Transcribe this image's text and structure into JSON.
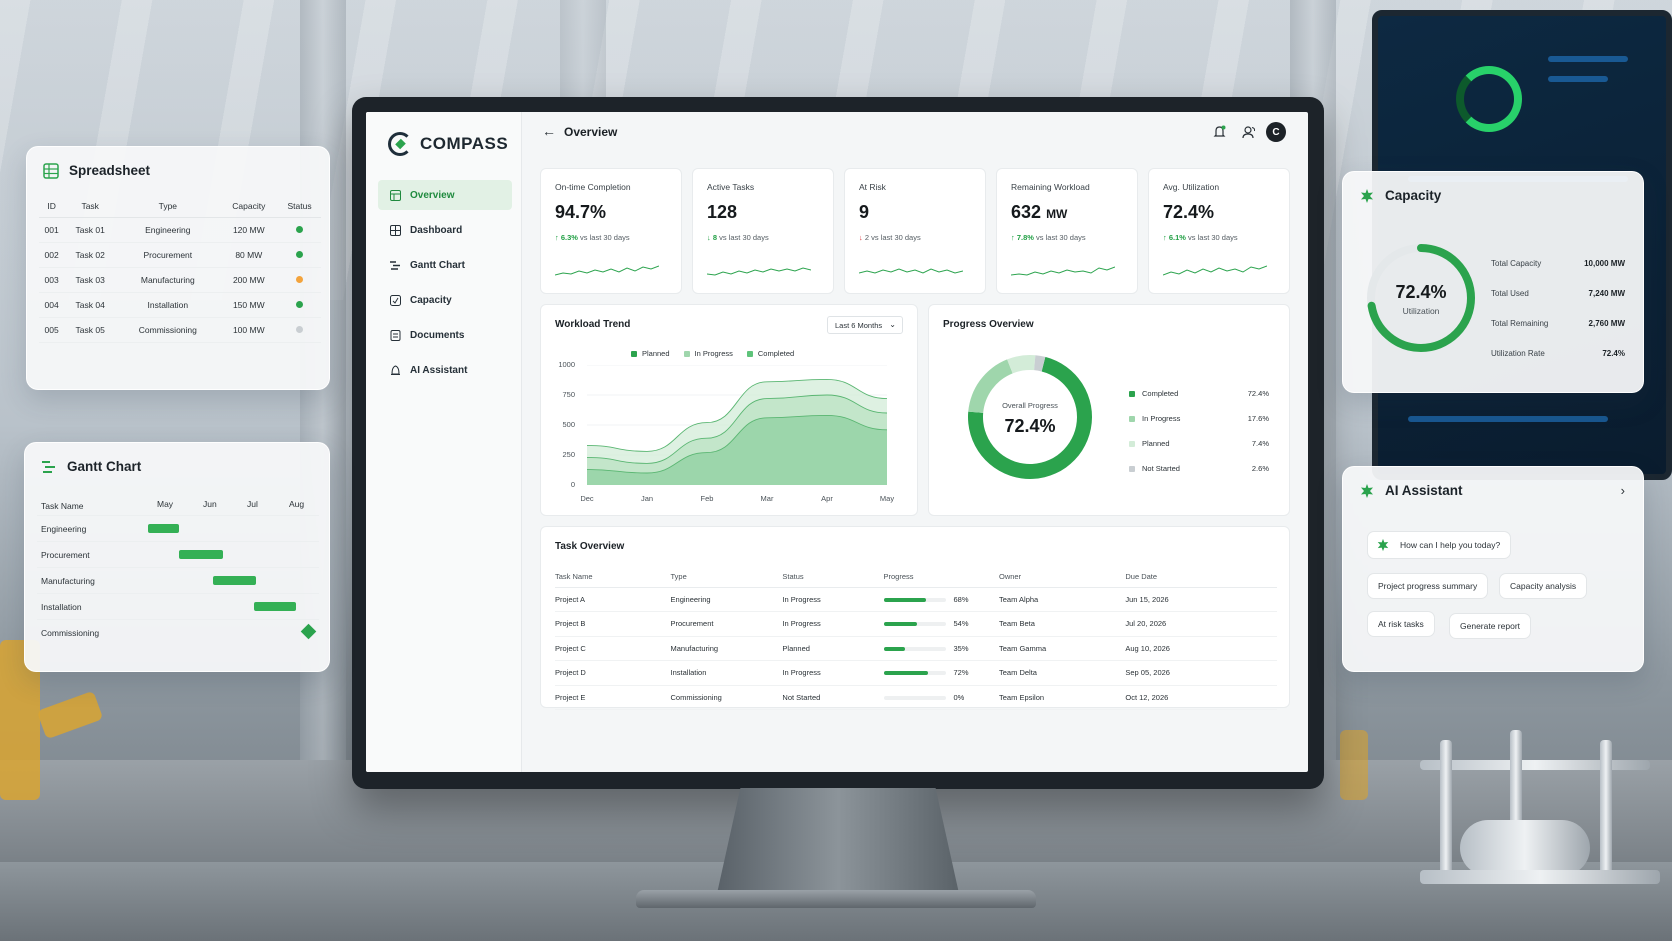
{
  "app": {
    "name": "COMPASS"
  },
  "colors": {
    "accent": "#2ba34d",
    "accent_light": "#9fd6ac",
    "accent_pale": "#d3ecd8",
    "not_started": "#c9ced2",
    "warning": "#f3a33c",
    "down": "#d9363e"
  },
  "sidebar": {
    "items": [
      {
        "label": "Overview",
        "icon": "overview-icon",
        "active": true
      },
      {
        "label": "Dashboard",
        "icon": "dashboard-icon"
      },
      {
        "label": "Gantt Chart",
        "icon": "gantt-icon"
      },
      {
        "label": "Capacity",
        "icon": "capacity-icon"
      },
      {
        "label": "Documents",
        "icon": "documents-icon"
      },
      {
        "label": "AI Assistant",
        "icon": "ai-assistant-icon"
      }
    ]
  },
  "header": {
    "title": "Overview",
    "avatar_initial": "C",
    "icons": [
      "back-arrow-icon",
      "bell-icon",
      "team-icon"
    ]
  },
  "kpis": [
    {
      "label": "On-time Completion",
      "value": "94.7%",
      "unit": "",
      "direction": "up",
      "delta": "6.3%",
      "delta_text": "vs last 30 days"
    },
    {
      "label": "Active Tasks",
      "value": "128",
      "unit": "",
      "direction": "down",
      "delta": "8",
      "delta_text": "vs last 30 days"
    },
    {
      "label": "At Risk",
      "value": "9",
      "unit": "",
      "direction": "down",
      "delta": "2",
      "delta_text": "vs last 30 days"
    },
    {
      "label": "Remaining Workload",
      "value": "632",
      "unit": "MW",
      "direction": "up",
      "delta": "7.8%",
      "delta_text": "vs last 30 days"
    },
    {
      "label": "Avg. Utilization",
      "value": "72.4%",
      "unit": "",
      "direction": "up",
      "delta": "6.1%",
      "delta_text": "vs last 30 days"
    }
  ],
  "workload": {
    "title": "Workload Trend",
    "range": "Last 6 Months",
    "legend": [
      "Planned",
      "In Progress",
      "Completed"
    ]
  },
  "chart_data": [
    {
      "type": "area",
      "title": "Workload Trend",
      "x": [
        "Dec",
        "Jan",
        "Feb",
        "Mar",
        "Apr",
        "May"
      ],
      "ylim": [
        0,
        1000
      ],
      "yticks": [
        1000,
        750,
        500,
        250,
        0
      ],
      "grid": true,
      "legend_position": "top",
      "series": [
        {
          "name": "Planned",
          "values": [
            330,
            280,
            520,
            860,
            880,
            720
          ]
        },
        {
          "name": "In Progress",
          "values": [
            230,
            180,
            390,
            720,
            750,
            600
          ]
        },
        {
          "name": "Completed",
          "values": [
            130,
            100,
            270,
            560,
            580,
            460
          ]
        }
      ]
    },
    {
      "type": "pie",
      "title": "Progress Overview",
      "center_label": "Overall Progress",
      "center_value": "72.4%",
      "slices": [
        {
          "name": "Completed",
          "value": 72.4,
          "label": "72.4%"
        },
        {
          "name": "In Progress",
          "value": 17.6,
          "label": "17.6%"
        },
        {
          "name": "Planned",
          "value": 7.4,
          "label": "7.4%"
        },
        {
          "name": "Not Started",
          "value": 2.6,
          "label": "2.6%"
        }
      ]
    }
  ],
  "progress": {
    "title": "Progress Overview",
    "center_label": "Overall Progress",
    "center_value": "72.4%"
  },
  "tasks": {
    "title": "Task Overview",
    "columns": [
      "Task Name",
      "Type",
      "Status",
      "Progress",
      "Owner",
      "Due Date"
    ],
    "rows": [
      {
        "name": "Project A",
        "type": "Engineering",
        "status": "In Progress",
        "progress": 68,
        "progress_label": "68%",
        "owner": "Team Alpha",
        "due": "Jun 15, 2026"
      },
      {
        "name": "Project B",
        "type": "Procurement",
        "status": "In Progress",
        "progress": 54,
        "progress_label": "54%",
        "owner": "Team Beta",
        "due": "Jul 20, 2026"
      },
      {
        "name": "Project C",
        "type": "Manufacturing",
        "status": "Planned",
        "progress": 35,
        "progress_label": "35%",
        "owner": "Team Gamma",
        "due": "Aug 10, 2026"
      },
      {
        "name": "Project D",
        "type": "Installation",
        "status": "In Progress",
        "progress": 72,
        "progress_label": "72%",
        "owner": "Team Delta",
        "due": "Sep 05, 2026"
      },
      {
        "name": "Project E",
        "type": "Commissioning",
        "status": "Not Started",
        "progress": 0,
        "progress_label": "0%",
        "owner": "Team Epsilon",
        "due": "Oct 12, 2026"
      }
    ]
  },
  "spreadsheet": {
    "title": "Spreadsheet",
    "columns": [
      "ID",
      "Task",
      "Type",
      "Capacity",
      "Status"
    ],
    "rows": [
      {
        "id": "001",
        "task": "Task 01",
        "type": "Engineering",
        "capacity": "120 MW",
        "status": "ok"
      },
      {
        "id": "002",
        "task": "Task 02",
        "type": "Procurement",
        "capacity": "80 MW",
        "status": "ok"
      },
      {
        "id": "003",
        "task": "Task 03",
        "type": "Manufacturing",
        "capacity": "200 MW",
        "status": "warning"
      },
      {
        "id": "004",
        "task": "Task 04",
        "type": "Installation",
        "capacity": "150 MW",
        "status": "ok"
      },
      {
        "id": "005",
        "task": "Task 05",
        "type": "Commissioning",
        "capacity": "100 MW",
        "status": "pending"
      }
    ]
  },
  "gantt": {
    "title": "Gantt Chart",
    "name_header": "Task Name",
    "months": [
      "May",
      "Jun",
      "Jul",
      "Aug"
    ],
    "rows": [
      {
        "name": "Engineering",
        "start": 0.02,
        "end": 0.2,
        "kind": "bar"
      },
      {
        "name": "Procurement",
        "start": 0.2,
        "end": 0.46,
        "kind": "bar"
      },
      {
        "name": "Manufacturing",
        "start": 0.4,
        "end": 0.65,
        "kind": "bar"
      },
      {
        "name": "Installation",
        "start": 0.64,
        "end": 0.89,
        "kind": "bar"
      },
      {
        "name": "Commissioning",
        "start": 0.93,
        "end": 0.93,
        "kind": "milestone"
      }
    ]
  },
  "capacity": {
    "title": "Capacity",
    "utilization": 72.4,
    "center_value": "72.4%",
    "center_label": "Utilization",
    "rows": [
      {
        "label": "Total Capacity",
        "value": "10,000 MW"
      },
      {
        "label": "Total Used",
        "value": "7,240 MW"
      },
      {
        "label": "Total Remaining",
        "value": "2,760 MW"
      },
      {
        "label": "Utilization Rate",
        "value": "72.4%"
      }
    ]
  },
  "assistant": {
    "title": "AI Assistant",
    "prompt": "How can I help you today?",
    "suggestions": [
      "Project progress summary",
      "Capacity analysis",
      "At risk tasks",
      "Generate report"
    ]
  }
}
